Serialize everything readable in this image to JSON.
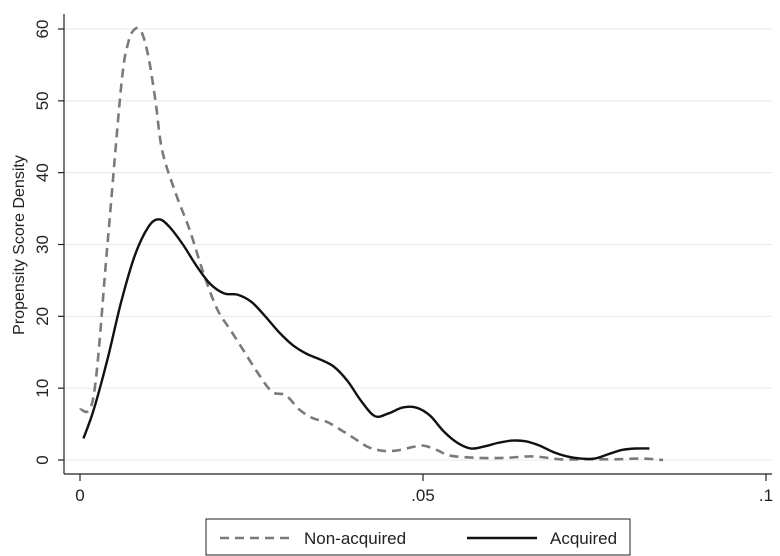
{
  "chart_data": {
    "type": "line",
    "title": "",
    "xlabel": "",
    "ylabel": "Propensity Score Density",
    "xlim": [
      0,
      0.1
    ],
    "ylim": [
      0,
      62
    ],
    "x_ticks": [
      {
        "value": 0,
        "label": "0"
      },
      {
        "value": 0.05,
        "label": ".05"
      },
      {
        "value": 0.1,
        "label": ".1"
      }
    ],
    "y_ticks": [
      {
        "value": 0,
        "label": "0"
      },
      {
        "value": 10,
        "label": "10"
      },
      {
        "value": 20,
        "label": "20"
      },
      {
        "value": 30,
        "label": "30"
      },
      {
        "value": 40,
        "label": "40"
      },
      {
        "value": 50,
        "label": "50"
      },
      {
        "value": 60,
        "label": "60"
      }
    ],
    "grid": "horizontal",
    "legend_position": "bottom",
    "series": [
      {
        "name": "Non-acquired",
        "style": "dashed",
        "color": "#7a7a7a",
        "x": [
          0,
          0.002,
          0.004,
          0.006,
          0.007,
          0.008,
          0.009,
          0.01,
          0.011,
          0.012,
          0.014,
          0.016,
          0.018,
          0.02,
          0.022,
          0.024,
          0.026,
          0.028,
          0.03,
          0.032,
          0.034,
          0.036,
          0.038,
          0.04,
          0.042,
          0.044,
          0.046,
          0.048,
          0.05,
          0.052,
          0.054,
          0.058,
          0.062,
          0.066,
          0.07,
          0.074,
          0.078,
          0.082,
          0.085
        ],
        "y": [
          7,
          9,
          30,
          52,
          58,
          60,
          59.5,
          56,
          50,
          43,
          37,
          32,
          26,
          21,
          18,
          15,
          12,
          9.5,
          9,
          7,
          5.8,
          5.3,
          4.2,
          3.0,
          1.8,
          1.3,
          1.3,
          1.7,
          2.0,
          1.4,
          0.6,
          0.3,
          0.3,
          0.5,
          0.1,
          0.1,
          0.1,
          0.2,
          0
        ]
      },
      {
        "name": "Acquired",
        "style": "solid",
        "color": "#111111",
        "x": [
          0.0005,
          0.002,
          0.004,
          0.006,
          0.008,
          0.01,
          0.0115,
          0.013,
          0.015,
          0.017,
          0.019,
          0.021,
          0.023,
          0.025,
          0.027,
          0.029,
          0.031,
          0.033,
          0.035,
          0.037,
          0.039,
          0.041,
          0.043,
          0.045,
          0.047,
          0.049,
          0.051,
          0.053,
          0.055,
          0.057,
          0.059,
          0.061,
          0.063,
          0.065,
          0.067,
          0.069,
          0.071,
          0.073,
          0.075,
          0.077,
          0.079,
          0.081,
          0.083
        ],
        "y": [
          3,
          7,
          14,
          22,
          28.5,
          32.5,
          33.5,
          32.5,
          30,
          27,
          24.5,
          23.2,
          23,
          22,
          20,
          17.8,
          16,
          14.8,
          14,
          13,
          11,
          8.2,
          6.1,
          6.5,
          7.3,
          7.3,
          6.2,
          4,
          2.4,
          1.6,
          1.9,
          2.4,
          2.7,
          2.6,
          2.0,
          1.1,
          0.5,
          0.2,
          0.2,
          0.8,
          1.4,
          1.6,
          1.6
        ]
      }
    ]
  }
}
